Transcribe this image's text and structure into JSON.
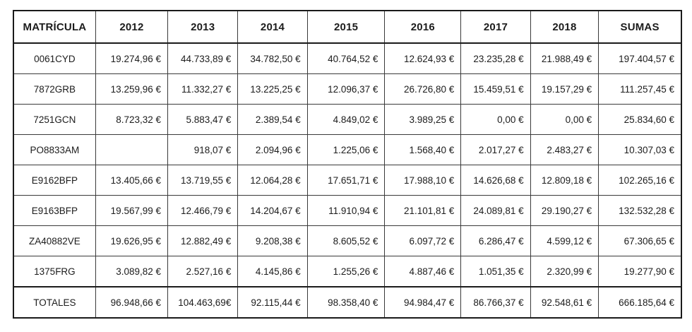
{
  "table": {
    "columns": [
      "MATRÍCULA",
      "2012",
      "2013",
      "2014",
      "2015",
      "2016",
      "2017",
      "2018",
      "SUMAS"
    ],
    "rows": [
      {
        "label": "0061CYD",
        "values": [
          "19.274,96 €",
          "44.733,89 €",
          "34.782,50 €",
          "40.764,52 €",
          "12.624,93 €",
          "23.235,28 €",
          "21.988,49 €",
          "197.404,57 €"
        ]
      },
      {
        "label": "7872GRB",
        "values": [
          "13.259,96 €",
          "11.332,27 €",
          "13.225,25 €",
          "12.096,37 €",
          "26.726,80 €",
          "15.459,51 €",
          "19.157,29 €",
          "111.257,45 €"
        ]
      },
      {
        "label": "7251GCN",
        "values": [
          "8.723,32 €",
          "5.883,47 €",
          "2.389,54 €",
          "4.849,02 €",
          "3.989,25 €",
          "0,00 €",
          "0,00 €",
          "25.834,60 €"
        ]
      },
      {
        "label": "PO8833AM",
        "values": [
          "",
          "918,07 €",
          "2.094,96 €",
          "1.225,06 €",
          "1.568,40 €",
          "2.017,27 €",
          "2.483,27 €",
          "10.307,03 €"
        ]
      },
      {
        "label": "E9162BFP",
        "values": [
          "13.405,66 €",
          "13.719,55 €",
          "12.064,28 €",
          "17.651,71 €",
          "17.988,10 €",
          "14.626,68 €",
          "12.809,18 €",
          "102.265,16 €"
        ]
      },
      {
        "label": "E9163BFP",
        "values": [
          "19.567,99 €",
          "12.466,79 €",
          "14.204,67 €",
          "11.910,94 €",
          "21.101,81 €",
          "24.089,81 €",
          "29.190,27 €",
          "132.532,28 €"
        ]
      },
      {
        "label": "ZA40882VE",
        "values": [
          "19.626,95 €",
          "12.882,49 €",
          "9.208,38 €",
          "8.605,52 €",
          "6.097,72 €",
          "6.286,47 €",
          "4.599,12 €",
          "67.306,65 €"
        ]
      },
      {
        "label": "1375FRG",
        "values": [
          "3.089,82 €",
          "2.527,16 €",
          "4.145,86 €",
          "1.255,26 €",
          "4.887,46 €",
          "1.051,35 €",
          "2.320,99 €",
          "19.277,90 €"
        ]
      }
    ],
    "totals": {
      "label": "TOTALES",
      "values": [
        "96.948,66 €",
        "104.463,69€",
        "92.115,44 €",
        "98.358,40 €",
        "94.984,47 €",
        "86.766,37 €",
        "92.548,61 €",
        "666.185,64 €"
      ]
    },
    "column_widths_pct": [
      12.3,
      10.8,
      10.5,
      10.4,
      11.6,
      11.4,
      10.4,
      10.2,
      12.4
    ]
  }
}
